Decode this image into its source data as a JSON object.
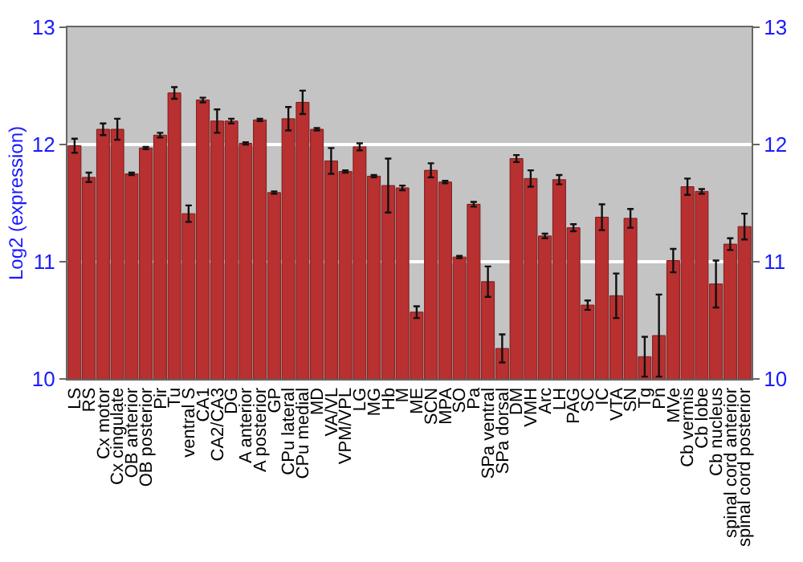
{
  "chart_data": {
    "type": "bar",
    "ylabel": "Log2 (expression)",
    "categories": [
      "LS",
      "RS",
      "Cx motor",
      "Cx cingulate",
      "OB anterior",
      "OB posterior",
      "Pir",
      "Tu",
      "ventral S",
      "CA1",
      "CA2/CA3",
      "DG",
      "A anterior",
      "A posterior",
      "GP",
      "CPu lateral",
      "CPu medial",
      "MD",
      "VA/VL",
      "VPM/VPL",
      "LG",
      "MG",
      "Hb",
      "M",
      "ME",
      "SCN",
      "MPA",
      "SO",
      "Pa",
      "SPa ventral",
      "SPa dorsal",
      "DM",
      "VMH",
      "Arc",
      "LH",
      "PAG",
      "SC",
      "IC",
      "VTA",
      "SN",
      "Tg",
      "Pn",
      "MVe",
      "Cb vermis",
      "Cb lobe",
      "Cb nucleus",
      "spinal cord anterior",
      "spinal cord posterior"
    ],
    "values": [
      11.99,
      11.72,
      12.13,
      12.13,
      11.75,
      11.97,
      12.08,
      12.44,
      11.41,
      12.38,
      12.2,
      12.2,
      12.01,
      12.21,
      11.59,
      12.22,
      12.36,
      12.13,
      11.86,
      11.77,
      11.98,
      11.73,
      11.65,
      11.63,
      10.57,
      11.78,
      11.68,
      11.04,
      11.49,
      10.83,
      10.26,
      11.88,
      11.71,
      11.22,
      11.7,
      11.29,
      10.63,
      11.38,
      10.71,
      11.37,
      10.19,
      10.37,
      11.01,
      11.64,
      11.6,
      10.81,
      11.15,
      11.3
    ],
    "errors": [
      0.06,
      0.04,
      0.05,
      0.09,
      0.01,
      0.01,
      0.02,
      0.05,
      0.07,
      0.02,
      0.1,
      0.02,
      0.01,
      0.01,
      0.01,
      0.1,
      0.1,
      0.01,
      0.11,
      0.01,
      0.03,
      0.01,
      0.23,
      0.02,
      0.05,
      0.06,
      0.01,
      0.01,
      0.02,
      0.13,
      0.12,
      0.03,
      0.07,
      0.02,
      0.04,
      0.03,
      0.04,
      0.11,
      0.19,
      0.08,
      0.17,
      0.35,
      0.1,
      0.07,
      0.02,
      0.2,
      0.05,
      0.11
    ],
    "color": "#b83030",
    "ylim": [
      10,
      13
    ],
    "yticks": [
      10,
      11,
      12,
      13
    ],
    "y2lim": [
      10,
      13
    ],
    "y2ticks": [
      10,
      11,
      12,
      13
    ],
    "grid": "y"
  }
}
